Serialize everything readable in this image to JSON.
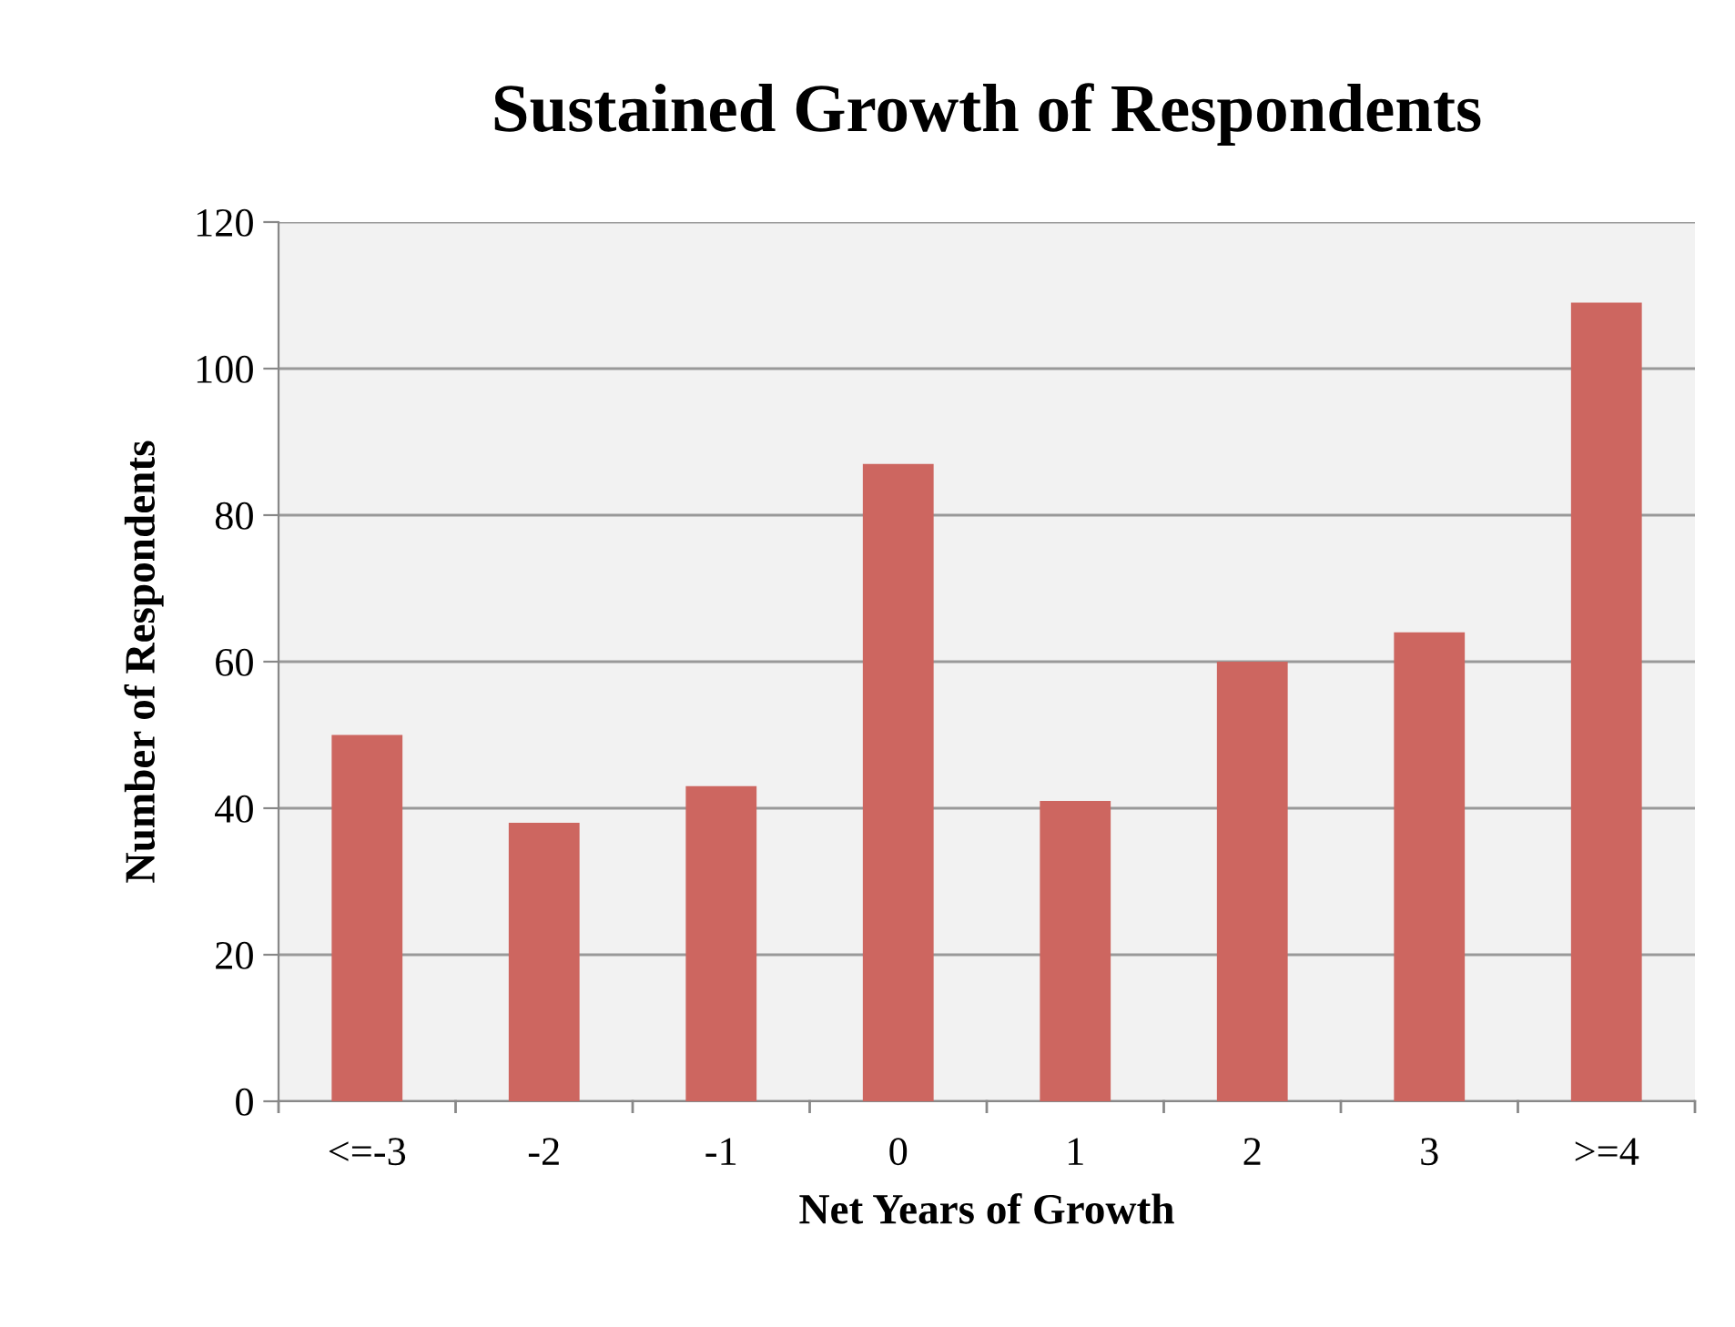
{
  "chart_data": {
    "type": "bar",
    "title": "Sustained Growth of Respondents",
    "xlabel": "Net Years of Growth",
    "ylabel": "Number of Respondents",
    "categories": [
      "<=-3",
      "-2",
      "-1",
      "0",
      "1",
      "2",
      "3",
      ">=4"
    ],
    "values": [
      50,
      38,
      43,
      87,
      41,
      60,
      64,
      109
    ],
    "color": "#cd6660",
    "ylim": [
      0,
      120
    ],
    "yticks": [
      0,
      20,
      40,
      60,
      80,
      100,
      120
    ],
    "grid": "y",
    "legend": false
  }
}
